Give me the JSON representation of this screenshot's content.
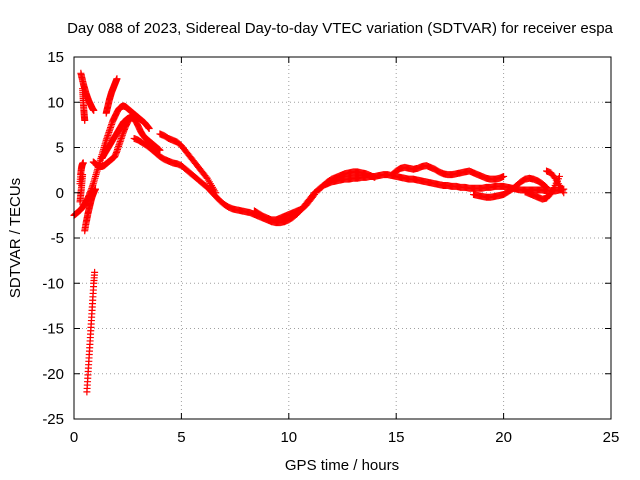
{
  "chart_data": {
    "type": "scatter",
    "title": "Day 088 of 2023, Sidereal Day-to-day VTEC variation (SDTVAR) for receiver espa",
    "xlabel": "GPS time / hours",
    "ylabel": "SDTVAR / TECUs",
    "xlim": [
      0,
      25
    ],
    "ylim": [
      -25,
      15
    ],
    "xticks": [
      0,
      5,
      10,
      15,
      20,
      25
    ],
    "yticks": [
      -25,
      -20,
      -15,
      -10,
      -5,
      0,
      5,
      10,
      15
    ],
    "grid": true,
    "marker": "+",
    "series": [
      {
        "name": "SDTVAR",
        "color": "#ff0000",
        "tracks": [
          {
            "x": [
              0.32,
              0.38,
              0.44,
              0.5,
              0.56,
              0.62,
              0.68,
              0.74,
              0.8,
              0.86,
              0.92
            ],
            "y": [
              13.2,
              12.6,
              12.0,
              11.5,
              11.0,
              10.6,
              10.2,
              9.9,
              9.6,
              9.3,
              9.1
            ]
          },
          {
            "x": [
              0.4,
              0.42,
              0.44,
              0.46,
              0.48,
              0.5
            ],
            "y": [
              11.5,
              10.6,
              9.8,
              9.1,
              8.5,
              8.0
            ]
          },
          {
            "x": [
              0.28,
              0.31,
              0.34,
              0.37,
              0.4,
              0.43
            ],
            "y": [
              1.0,
              2.0,
              2.6,
              3.0,
              3.2,
              3.3
            ]
          },
          {
            "x": [
              0.28,
              0.31,
              0.34,
              0.37,
              0.4
            ],
            "y": [
              -1.0,
              -0.3,
              0.4,
              1.2,
              2.0
            ]
          },
          {
            "x": [
              0.0,
              0.1,
              0.2,
              0.3,
              0.4,
              0.5,
              0.6,
              0.7,
              0.8,
              0.9,
              1.0,
              1.1,
              1.2,
              1.3,
              1.4,
              1.5,
              1.6,
              1.7,
              1.8,
              1.9,
              2.0,
              2.1,
              2.2,
              2.3,
              2.4,
              2.5,
              2.6,
              2.7,
              2.8,
              2.9,
              3.0,
              3.1,
              3.2,
              3.3,
              3.4,
              3.5
            ],
            "y": [
              -2.5,
              -2.3,
              -2.1,
              -1.9,
              -1.6,
              -1.2,
              -0.8,
              -0.3,
              0.3,
              1.0,
              1.8,
              2.6,
              3.4,
              4.2,
              5.0,
              5.8,
              6.5,
              7.2,
              7.9,
              8.4,
              8.9,
              9.3,
              9.5,
              9.6,
              9.5,
              9.3,
              9.1,
              8.9,
              8.7,
              8.5,
              8.3,
              8.1,
              7.9,
              7.7,
              7.4,
              7.1
            ]
          },
          {
            "x": [
              0.5,
              0.55,
              0.6,
              0.65,
              0.7,
              0.75,
              0.8,
              0.85,
              0.9,
              0.95,
              1.0
            ],
            "y": [
              -4.2,
              -3.5,
              -2.9,
              -2.3,
              -1.8,
              -1.3,
              -0.8,
              -0.4,
              -0.1,
              0.2,
              0.4
            ]
          },
          {
            "x": [
              0.6,
              0.64,
              0.68,
              0.72,
              0.76,
              0.8,
              0.84,
              0.88,
              0.92,
              0.96
            ],
            "y": [
              -22.0,
              -20.5,
              -19.0,
              -17.5,
              -16.0,
              -14.5,
              -13.0,
              -11.5,
              -10.0,
              -8.8
            ]
          },
          {
            "x": [
              0.9,
              1.0,
              1.1,
              1.2,
              1.3,
              1.4,
              1.5,
              1.6,
              1.7,
              1.8,
              1.9,
              2.0,
              2.1,
              2.2,
              2.3,
              2.4,
              2.5,
              2.6,
              2.7,
              2.8
            ],
            "y": [
              3.4,
              3.2,
              3.0,
              2.9,
              2.9,
              3.0,
              3.2,
              3.4,
              3.6,
              3.8,
              4.0,
              4.6,
              5.3,
              6.0,
              6.7,
              7.3,
              7.8,
              8.2,
              8.5,
              8.6
            ]
          },
          {
            "x": [
              1.5,
              1.55,
              1.6,
              1.65,
              1.7,
              1.75,
              1.8,
              1.85,
              1.9,
              1.95,
              2.0
            ],
            "y": [
              8.8,
              9.3,
              9.8,
              10.3,
              10.7,
              11.1,
              11.4,
              11.7,
              12.0,
              12.3,
              12.6
            ]
          },
          {
            "x": [
              1.3,
              1.4,
              1.5,
              1.6,
              1.7,
              1.8,
              1.9,
              2.0,
              2.1,
              2.2,
              2.3,
              2.4,
              2.5,
              2.6,
              2.7,
              2.8,
              2.9,
              3.0,
              3.1,
              3.2,
              3.3,
              3.4,
              3.5,
              3.6,
              3.7,
              3.8,
              3.9,
              4.0
            ],
            "y": [
              3.8,
              4.2,
              4.6,
              5.0,
              5.4,
              5.8,
              6.2,
              6.6,
              7.0,
              7.4,
              7.8,
              8.0,
              8.2,
              8.3,
              8.3,
              8.1,
              7.8,
              7.3,
              6.8,
              6.4,
              6.1,
              5.9,
              5.7,
              5.5,
              5.3,
              5.1,
              4.9,
              4.7
            ]
          },
          {
            "x": [
              2.8,
              3.0,
              3.2,
              3.4,
              3.6,
              3.8,
              4.0,
              4.2,
              4.4,
              4.6,
              4.8,
              5.0,
              5.2,
              5.4,
              5.6,
              5.8,
              6.0,
              6.2,
              6.4,
              6.6,
              6.8,
              7.0,
              7.2,
              7.4,
              7.6,
              7.8,
              8.0,
              8.2,
              8.4,
              8.6,
              8.8,
              9.0,
              9.2,
              9.4,
              9.6,
              9.8,
              10.0,
              10.2,
              10.4,
              10.6,
              10.8,
              11.0,
              11.2,
              11.4,
              11.6,
              11.8,
              12.0,
              12.2,
              12.4,
              12.6,
              12.8,
              13.0,
              13.2,
              13.4,
              13.6,
              13.8,
              14.0,
              14.2,
              14.4,
              14.6,
              14.8,
              15.0,
              15.2,
              15.4,
              15.6,
              15.8,
              16.0,
              16.2,
              16.4,
              16.6,
              16.8,
              17.0,
              17.2,
              17.4,
              17.6,
              17.8,
              18.0,
              18.2,
              18.4,
              18.6,
              18.8,
              19.0,
              19.2,
              19.4,
              19.6,
              19.8,
              20.0,
              20.2,
              20.4,
              20.6,
              20.8,
              21.0,
              21.2,
              21.4,
              21.6,
              21.8,
              22.0,
              22.2,
              22.4,
              22.6,
              22.8
            ],
            "y": [
              6.0,
              5.8,
              5.5,
              5.2,
              4.8,
              4.4,
              4.0,
              3.7,
              3.5,
              3.3,
              3.2,
              3.0,
              2.6,
              2.2,
              1.8,
              1.4,
              1.0,
              0.6,
              0.1,
              -0.4,
              -0.9,
              -1.3,
              -1.6,
              -1.8,
              -1.9,
              -2.0,
              -2.1,
              -2.2,
              -2.4,
              -2.6,
              -2.8,
              -3.0,
              -3.2,
              -3.3,
              -3.3,
              -3.2,
              -3.0,
              -2.7,
              -2.3,
              -1.8,
              -1.2,
              -0.6,
              0.0,
              0.4,
              0.8,
              1.0,
              1.2,
              1.3,
              1.4,
              1.5,
              1.5,
              1.6,
              1.6,
              1.7,
              1.7,
              1.8,
              1.8,
              1.9,
              2.0,
              2.0,
              1.9,
              1.8,
              1.7,
              1.6,
              1.5,
              1.5,
              1.4,
              1.3,
              1.2,
              1.1,
              1.0,
              0.9,
              0.8,
              0.8,
              0.7,
              0.7,
              0.6,
              0.6,
              0.5,
              0.5,
              0.5,
              0.5,
              0.6,
              0.6,
              0.7,
              0.7,
              0.7,
              0.6,
              0.5,
              0.4,
              0.3,
              0.3,
              0.3,
              0.3,
              0.3,
              0.3,
              0.2,
              0.2,
              0.2,
              0.3,
              0.4
            ]
          },
          {
            "x": [
              4.0,
              4.2,
              4.4,
              4.6,
              4.8,
              5.0,
              5.2,
              5.4,
              5.6,
              5.8,
              6.0,
              6.2,
              6.4,
              6.6
            ],
            "y": [
              6.5,
              6.3,
              6.0,
              5.8,
              5.6,
              5.2,
              4.6,
              4.0,
              3.4,
              2.8,
              2.2,
              1.6,
              0.8,
              0.0
            ]
          },
          {
            "x": [
              8.4,
              8.6,
              8.8,
              9.0,
              9.2,
              9.4,
              9.6,
              9.8,
              10.0,
              10.2,
              10.4,
              10.6,
              10.8,
              11.0,
              11.2
            ],
            "y": [
              -2.0,
              -2.3,
              -2.6,
              -2.8,
              -3.0,
              -3.0,
              -2.8,
              -2.6,
              -2.4,
              -2.2,
              -2.0,
              -1.8,
              -1.4,
              -0.8,
              -0.2
            ]
          },
          {
            "x": [
              11.4,
              11.6,
              11.8,
              12.0,
              12.2,
              12.4,
              12.6,
              12.8,
              13.0,
              13.2,
              13.4,
              13.6,
              13.8,
              14.0
            ],
            "y": [
              0.3,
              0.8,
              1.2,
              1.5,
              1.7,
              1.9,
              2.1,
              2.2,
              2.3,
              2.3,
              2.2,
              2.1,
              1.9,
              1.7
            ]
          },
          {
            "x": [
              14.8,
              15.0,
              15.2,
              15.4,
              15.6,
              15.8,
              16.0,
              16.2,
              16.4,
              16.6,
              16.8,
              17.0,
              17.2,
              17.4,
              17.6,
              17.8,
              18.0,
              18.2,
              18.4,
              18.6,
              18.8,
              19.0,
              19.2,
              19.4,
              19.6,
              19.8,
              20.0
            ],
            "y": [
              2.0,
              2.4,
              2.7,
              2.8,
              2.7,
              2.6,
              2.7,
              2.9,
              3.0,
              2.8,
              2.6,
              2.3,
              2.1,
              2.0,
              2.0,
              2.1,
              2.2,
              2.3,
              2.4,
              2.2,
              2.0,
              1.8,
              1.6,
              1.5,
              1.5,
              1.6,
              1.8
            ]
          },
          {
            "x": [
              18.6,
              18.8,
              19.0,
              19.2,
              19.4,
              19.6,
              19.8,
              20.0,
              20.2,
              20.4,
              20.6,
              20.8,
              21.0,
              21.2,
              21.4,
              21.6,
              21.8,
              22.0
            ],
            "y": [
              -0.2,
              -0.3,
              -0.4,
              -0.5,
              -0.5,
              -0.4,
              -0.3,
              -0.2,
              0.1,
              0.4,
              0.8,
              1.2,
              1.5,
              1.6,
              1.5,
              1.3,
              1.0,
              0.6
            ]
          },
          {
            "x": [
              21.0,
              21.2,
              21.4,
              21.6,
              21.8,
              22.0,
              22.2,
              22.4,
              22.6
            ],
            "y": [
              0.1,
              -0.1,
              -0.3,
              -0.5,
              -0.7,
              -0.6,
              -0.1,
              0.8,
              1.8
            ]
          },
          {
            "x": [
              22.0,
              22.2,
              22.4,
              22.6,
              22.8
            ],
            "y": [
              2.4,
              2.2,
              1.6,
              0.8,
              0.0
            ]
          }
        ]
      }
    ]
  }
}
